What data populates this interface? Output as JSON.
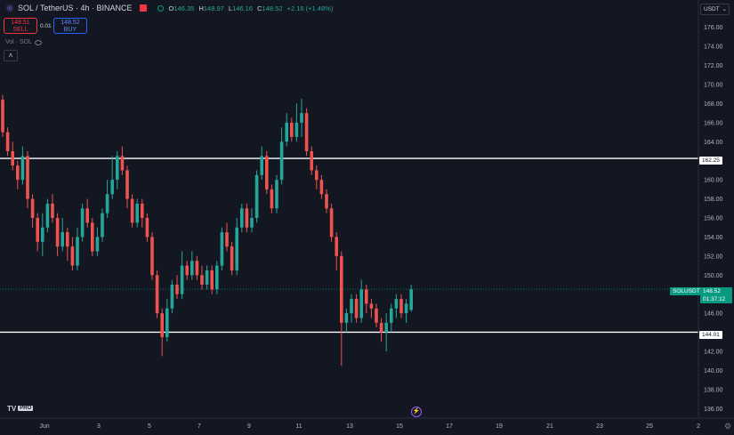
{
  "header": {
    "symbol_title": "SOL / TetherUS · 4h · BINANCE",
    "ohlc": [
      {
        "k": "O",
        "v": "146.35"
      },
      {
        "k": "H",
        "v": "148.97"
      },
      {
        "k": "L",
        "v": "146.16"
      },
      {
        "k": "C",
        "v": "148.52"
      },
      {
        "k": "",
        "v": "+2.16 (+1.48%)"
      }
    ],
    "sell_price": "148.51",
    "sell_label": "SELL",
    "spread": "0.01",
    "buy_price": "148.52",
    "buy_label": "BUY",
    "volume_label": "Vol · SOL",
    "currency": "USDT"
  },
  "price_axis": {
    "labels": [
      "176.00",
      "174.00",
      "172.00",
      "170.00",
      "168.00",
      "166.00",
      "164.00",
      "160.00",
      "158.00",
      "156.00",
      "154.00",
      "152.00",
      "150.00",
      "146.00",
      "142.00",
      "140.00",
      "138.00",
      "136.00"
    ]
  },
  "time_axis": {
    "labels": [
      "Jun",
      "3",
      "5",
      "7",
      "9",
      "11",
      "13",
      "15",
      "17",
      "19",
      "21",
      "23",
      "25",
      "2"
    ]
  },
  "levels": {
    "resistance": "162.25",
    "support": "144.01"
  },
  "last_price": {
    "symbol": "SOLUSDT",
    "price": "148.52",
    "countdown": "01:37:12"
  },
  "branding": {
    "logo": "TV",
    "plan": "PRO"
  },
  "colors": {
    "background": "#131722",
    "up": "#26a69a",
    "down": "#ef5350",
    "level_line": "#ffffff",
    "last_price": "#089981"
  },
  "chart_data": {
    "type": "candlestick",
    "symbol": "SOL / TetherUS",
    "interval": "4h",
    "ylim": [
      135,
      177
    ],
    "x_axis": [
      "Jun",
      "3",
      "5",
      "7",
      "9",
      "11",
      "13",
      "15",
      "17",
      "19",
      "21",
      "23",
      "25",
      "2"
    ],
    "horizontal_levels": [
      162.25,
      144.01
    ],
    "candles": [
      [
        168.4,
        165.0,
        168.9,
        164.5
      ],
      [
        165.0,
        163.0,
        165.5,
        162.5
      ],
      [
        163.0,
        161.5,
        164.0,
        161.0
      ],
      [
        161.5,
        160.0,
        162.0,
        159.0
      ],
      [
        160.0,
        162.5,
        163.5,
        159.5
      ],
      [
        162.5,
        158.0,
        163.0,
        157.0
      ],
      [
        158.0,
        156.0,
        158.5,
        155.0
      ],
      [
        156.0,
        153.5,
        156.5,
        152.5
      ],
      [
        153.5,
        155.0,
        156.5,
        152.0
      ],
      [
        155.0,
        157.5,
        158.0,
        154.5
      ],
      [
        157.5,
        156.0,
        158.5,
        155.5
      ],
      [
        156.0,
        153.0,
        156.5,
        152.0
      ],
      [
        153.0,
        154.5,
        156.0,
        152.5
      ],
      [
        154.5,
        153.0,
        155.0,
        151.5
      ],
      [
        153.0,
        151.0,
        154.0,
        150.5
      ],
      [
        151.0,
        154.0,
        155.0,
        150.5
      ],
      [
        154.0,
        157.0,
        157.5,
        153.5
      ],
      [
        157.0,
        155.5,
        158.0,
        155.0
      ],
      [
        155.5,
        152.5,
        156.0,
        152.0
      ],
      [
        152.5,
        154.0,
        155.0,
        152.0
      ],
      [
        154.0,
        156.5,
        157.0,
        153.5
      ],
      [
        156.5,
        158.5,
        160.0,
        156.0
      ],
      [
        158.5,
        160.0,
        162.5,
        158.0
      ],
      [
        160.0,
        162.5,
        163.0,
        159.0
      ],
      [
        162.5,
        161.0,
        163.5,
        160.5
      ],
      [
        161.0,
        158.0,
        161.5,
        157.0
      ],
      [
        158.0,
        155.5,
        158.5,
        155.0
      ],
      [
        155.5,
        157.5,
        158.0,
        155.0
      ],
      [
        157.5,
        156.0,
        158.0,
        155.0
      ],
      [
        156.0,
        154.0,
        156.5,
        153.5
      ],
      [
        154.0,
        150.0,
        154.5,
        149.5
      ],
      [
        150.0,
        146.0,
        150.5,
        145.5
      ],
      [
        146.0,
        143.5,
        146.5,
        141.5
      ],
      [
        143.5,
        146.5,
        147.5,
        143.0
      ],
      [
        146.5,
        149.0,
        149.5,
        146.0
      ],
      [
        149.0,
        148.0,
        150.0,
        147.5
      ],
      [
        148.0,
        151.0,
        152.5,
        147.5
      ],
      [
        151.0,
        150.0,
        151.5,
        149.5
      ],
      [
        150.0,
        151.5,
        152.5,
        149.5
      ],
      [
        151.5,
        150.0,
        152.0,
        149.5
      ],
      [
        150.0,
        149.0,
        151.0,
        148.5
      ],
      [
        149.0,
        150.5,
        151.0,
        148.5
      ],
      [
        150.5,
        148.5,
        151.0,
        148.0
      ],
      [
        148.5,
        151.0,
        151.5,
        148.0
      ],
      [
        151.0,
        154.5,
        155.0,
        150.5
      ],
      [
        154.5,
        153.0,
        155.5,
        152.5
      ],
      [
        153.0,
        150.5,
        153.5,
        150.0
      ],
      [
        150.5,
        155.0,
        156.0,
        150.0
      ],
      [
        155.0,
        157.0,
        157.5,
        154.5
      ],
      [
        157.0,
        155.0,
        157.5,
        154.5
      ],
      [
        155.0,
        156.0,
        157.0,
        154.5
      ],
      [
        156.0,
        160.5,
        161.0,
        155.5
      ],
      [
        160.5,
        162.5,
        163.5,
        160.0
      ],
      [
        162.5,
        159.0,
        163.0,
        158.5
      ],
      [
        159.0,
        157.0,
        159.5,
        156.5
      ],
      [
        157.0,
        160.0,
        160.5,
        156.5
      ],
      [
        160.0,
        164.0,
        165.5,
        159.5
      ],
      [
        164.0,
        166.0,
        167.0,
        163.5
      ],
      [
        166.0,
        164.5,
        166.5,
        164.0
      ],
      [
        164.5,
        166.0,
        168.0,
        164.0
      ],
      [
        166.0,
        167.0,
        168.5,
        164.5
      ],
      [
        167.0,
        163.0,
        167.5,
        162.5
      ],
      [
        163.0,
        161.0,
        163.5,
        160.5
      ],
      [
        161.0,
        160.0,
        161.5,
        159.0
      ],
      [
        160.0,
        158.5,
        160.5,
        158.0
      ],
      [
        158.5,
        157.0,
        159.0,
        156.5
      ],
      [
        157.0,
        154.0,
        157.5,
        153.5
      ],
      [
        154.0,
        152.0,
        154.5,
        150.5
      ],
      [
        152.0,
        145.0,
        152.5,
        140.5
      ],
      [
        145.0,
        146.0,
        146.5,
        144.0
      ],
      [
        146.0,
        147.5,
        148.0,
        145.0
      ],
      [
        147.5,
        145.5,
        148.0,
        145.0
      ],
      [
        145.5,
        148.5,
        149.5,
        145.0
      ],
      [
        148.5,
        147.0,
        149.0,
        146.0
      ],
      [
        147.0,
        146.5,
        147.5,
        145.5
      ],
      [
        146.5,
        145.0,
        147.0,
        144.5
      ],
      [
        145.0,
        144.0,
        145.5,
        143.0
      ],
      [
        144.0,
        145.0,
        146.0,
        142.0
      ],
      [
        145.0,
        146.5,
        147.0,
        144.0
      ],
      [
        146.5,
        147.5,
        148.0,
        145.5
      ],
      [
        147.5,
        146.0,
        148.0,
        145.5
      ],
      [
        146.0,
        147.0,
        147.5,
        145.0
      ],
      [
        146.35,
        148.52,
        148.97,
        146.16
      ]
    ]
  }
}
